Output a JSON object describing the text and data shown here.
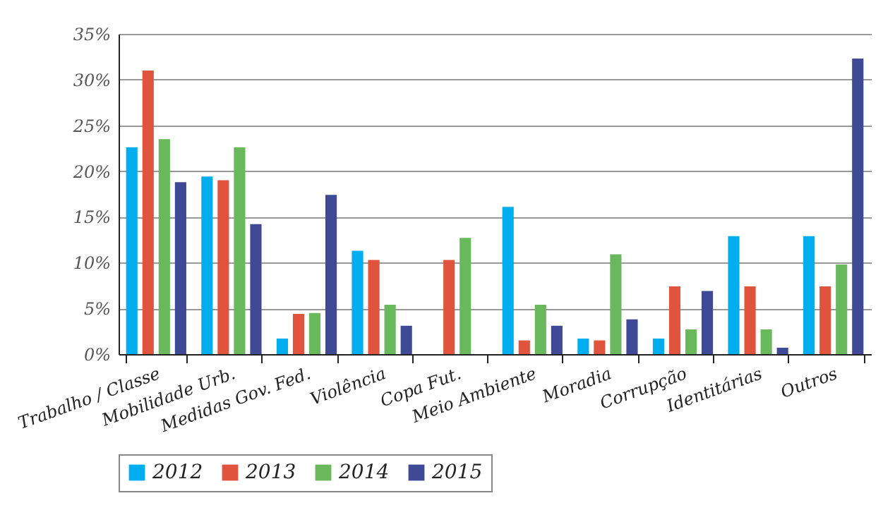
{
  "chart_data": {
    "type": "bar",
    "categories": [
      "Trabalho / Classe",
      "Mobilidade Urb.",
      "Medidas Gov. Fed.",
      "Violência",
      "Copa Fut.",
      "Meio Ambiente",
      "Moradia",
      "Corrupção",
      "Identitárias",
      "Outros"
    ],
    "series": [
      {
        "name": "2012",
        "color": "#00aeef",
        "values": [
          22.6,
          19.4,
          1.7,
          11.3,
          null,
          16.1,
          1.7,
          1.7,
          12.9,
          12.9
        ]
      },
      {
        "name": "2013",
        "color": "#e0533c",
        "values": [
          31.0,
          19.0,
          4.4,
          10.3,
          10.3,
          1.5,
          1.5,
          7.4,
          7.4,
          7.4
        ]
      },
      {
        "name": "2014",
        "color": "#6ab85c",
        "values": [
          23.5,
          22.6,
          4.5,
          5.4,
          12.7,
          5.4,
          10.9,
          2.7,
          2.7,
          9.8
        ]
      },
      {
        "name": "2015",
        "color": "#3f4a96",
        "values": [
          18.8,
          14.2,
          17.4,
          3.1,
          null,
          3.1,
          3.8,
          6.9,
          0.7,
          32.3
        ]
      }
    ],
    "ylim": [
      0,
      35
    ],
    "yticks": [
      {
        "value": 0,
        "label": "0%"
      },
      {
        "value": 5,
        "label": "5%"
      },
      {
        "value": 10,
        "label": "10%"
      },
      {
        "value": 15,
        "label": "15%"
      },
      {
        "value": 20,
        "label": "20%"
      },
      {
        "value": 25,
        "label": "25%"
      },
      {
        "value": 30,
        "label": "30%"
      },
      {
        "value": 35,
        "label": "35%"
      }
    ],
    "grid": "y",
    "legend": "bottom"
  }
}
